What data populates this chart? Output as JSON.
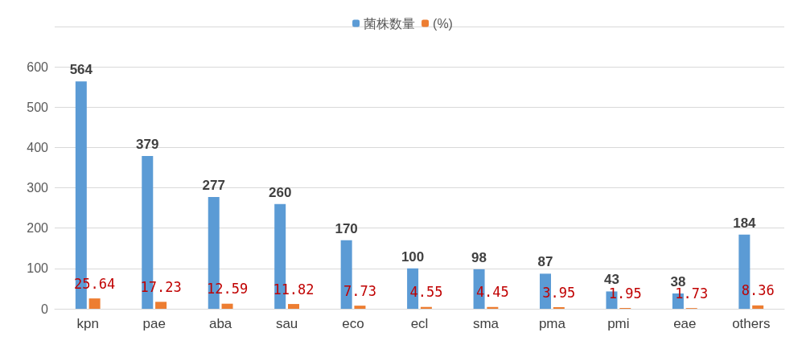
{
  "chart_data": {
    "type": "bar",
    "categories": [
      "kpn",
      "pae",
      "aba",
      "sau",
      "eco",
      "ecl",
      "sma",
      "pma",
      "pmi",
      "eae",
      "others"
    ],
    "series": [
      {
        "name": "菌株数量",
        "color": "#5b9bd5",
        "values": [
          564,
          379,
          277,
          260,
          170,
          100,
          98,
          87,
          43,
          38,
          184
        ]
      },
      {
        "name": "(%)",
        "color": "#ed7d31",
        "values": [
          25.64,
          17.23,
          12.59,
          11.82,
          7.73,
          4.55,
          4.45,
          3.95,
          1.95,
          1.73,
          8.36
        ]
      }
    ],
    "ylim": [
      0,
      700
    ],
    "yticks": [
      0,
      100,
      200,
      300,
      400,
      500,
      600,
      {
        "value": 700,
        "label": null
      }
    ],
    "grid": "y",
    "legend": "top",
    "data_labels": true
  }
}
